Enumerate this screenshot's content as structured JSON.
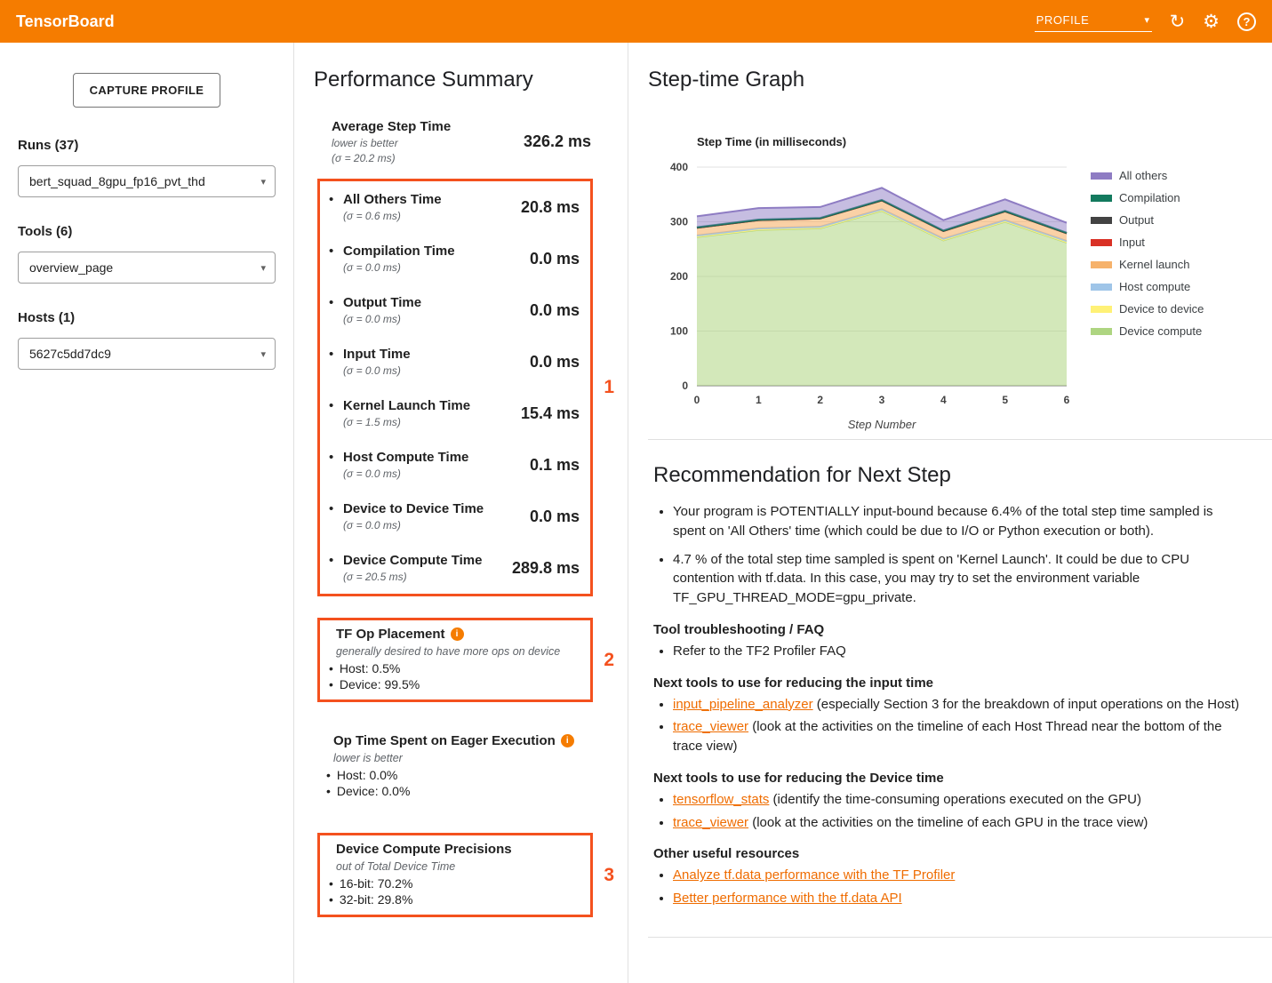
{
  "header": {
    "title": "TensorBoard",
    "dashboard": "PROFILE"
  },
  "icons": {
    "reload": "↻",
    "settings": "⚙",
    "help": "?",
    "dropdown": "▾",
    "info": "i"
  },
  "sidebar": {
    "capture_button": "CAPTURE PROFILE",
    "runs_label": "Runs (37)",
    "runs_value": "bert_squad_8gpu_fp16_pvt_thd",
    "tools_label": "Tools (6)",
    "tools_value": "overview_page",
    "hosts_label": "Hosts (1)",
    "hosts_value": "5627c5dd7dc9"
  },
  "summary": {
    "title": "Performance Summary",
    "average": {
      "name": "Average Step Time",
      "note": "lower is better",
      "sigma": "(σ = 20.2 ms)",
      "value": "326.2 ms"
    },
    "metrics": [
      {
        "name": "All Others Time",
        "sigma": "(σ = 0.6 ms)",
        "value": "20.8 ms"
      },
      {
        "name": "Compilation Time",
        "sigma": "(σ = 0.0 ms)",
        "value": "0.0 ms"
      },
      {
        "name": "Output Time",
        "sigma": "(σ = 0.0 ms)",
        "value": "0.0 ms"
      },
      {
        "name": "Input Time",
        "sigma": "(σ = 0.0 ms)",
        "value": "0.0 ms"
      },
      {
        "name": "Kernel Launch Time",
        "sigma": "(σ = 1.5 ms)",
        "value": "15.4 ms"
      },
      {
        "name": "Host Compute Time",
        "sigma": "(σ = 0.0 ms)",
        "value": "0.1 ms"
      },
      {
        "name": "Device to Device Time",
        "sigma": "(σ = 0.0 ms)",
        "value": "0.0 ms"
      },
      {
        "name": "Device Compute Time",
        "sigma": "(σ = 20.5 ms)",
        "value": "289.8 ms"
      }
    ],
    "tf_op_placement": {
      "title": "TF Op Placement",
      "note": "generally desired to have more ops on device",
      "items": [
        "Host: 0.5%",
        "Device: 99.5%"
      ]
    },
    "eager": {
      "title": "Op Time Spent on Eager Execution",
      "note": "lower is better",
      "items": [
        "Host: 0.0%",
        "Device: 0.0%"
      ]
    },
    "precisions": {
      "title": "Device Compute Precisions",
      "note": "out of Total Device Time",
      "items": [
        "16-bit: 70.2%",
        "32-bit: 29.8%"
      ]
    },
    "annotations": {
      "box1": "1",
      "box2": "2",
      "box3": "3"
    }
  },
  "stepgraph": {
    "title": "Step-time Graph"
  },
  "chart_data": {
    "type": "area",
    "stacked": true,
    "title": "Step Time (in milliseconds)",
    "xlabel": "Step Number",
    "ylabel": "",
    "x": [
      0,
      1,
      2,
      3,
      4,
      5,
      6
    ],
    "ylim": [
      0,
      400
    ],
    "yticks": [
      0,
      100,
      200,
      300,
      400
    ],
    "legend_position": "right",
    "grid": true,
    "series": [
      {
        "name": "Device compute",
        "color": "#aed581",
        "fill_opacity": 0.55,
        "values": [
          272,
          285,
          288,
          320,
          266,
          300,
          262
        ]
      },
      {
        "name": "Device to device",
        "color": "#fff176",
        "fill_opacity": 0.9,
        "values": [
          1,
          1,
          1,
          1,
          1,
          1,
          1
        ]
      },
      {
        "name": "Host compute",
        "color": "#9fc5e8",
        "fill_opacity": 0.9,
        "values": [
          2,
          2,
          2,
          2,
          2,
          2,
          2
        ]
      },
      {
        "name": "Kernel launch",
        "color": "#f6b26b",
        "fill_opacity": 0.6,
        "values": [
          14,
          15,
          15,
          16,
          14,
          16,
          14
        ]
      },
      {
        "name": "Input",
        "color": "#d93025",
        "fill_opacity": 0.8,
        "values": [
          0,
          0,
          0,
          0,
          0,
          0,
          0
        ]
      },
      {
        "name": "Output",
        "color": "#434343",
        "fill_opacity": 0.8,
        "values": [
          0,
          0,
          0,
          0,
          0,
          0,
          0
        ]
      },
      {
        "name": "Compilation",
        "color": "#137a5e",
        "fill_opacity": 0.8,
        "values": [
          1,
          1,
          1,
          1,
          1,
          1,
          1
        ]
      },
      {
        "name": "All others",
        "color": "#8e7cc3",
        "fill_opacity": 0.5,
        "values": [
          20,
          21,
          20,
          22,
          19,
          21,
          18
        ]
      }
    ]
  },
  "recommendation": {
    "title": "Recommendation for Next Step",
    "bullets": [
      "Your program is POTENTIALLY input-bound because 6.4% of the total step time sampled is spent on 'All Others' time (which could be due to I/O or Python execution or both).",
      "4.7 % of the total step time sampled is spent on 'Kernel Launch'. It could be due to CPU contention with tf.data. In this case, you may try to set the environment variable TF_GPU_THREAD_MODE=gpu_private."
    ],
    "sections": [
      {
        "heading": "Tool troubleshooting / FAQ",
        "items": [
          {
            "text": "Refer to the TF2 Profiler FAQ"
          }
        ]
      },
      {
        "heading": "Next tools to use for reducing the input time",
        "items": [
          {
            "link": "input_pipeline_analyzer",
            "rest": " (especially Section 3 for the breakdown of input operations on the Host)"
          },
          {
            "link": "trace_viewer",
            "rest": " (look at the activities on the timeline of each Host Thread near the bottom of the trace view)"
          }
        ]
      },
      {
        "heading": "Next tools to use for reducing the Device time",
        "items": [
          {
            "link": "tensorflow_stats",
            "rest": " (identify the time-consuming operations executed on the GPU)"
          },
          {
            "link": "trace_viewer",
            "rest": " (look at the activities on the timeline of each GPU in the trace view)"
          }
        ]
      },
      {
        "heading": "Other useful resources",
        "items": [
          {
            "link": "Analyze tf.data performance with the TF Profiler",
            "rest": ""
          },
          {
            "link": "Better performance with the tf.data API",
            "rest": ""
          }
        ]
      }
    ]
  }
}
